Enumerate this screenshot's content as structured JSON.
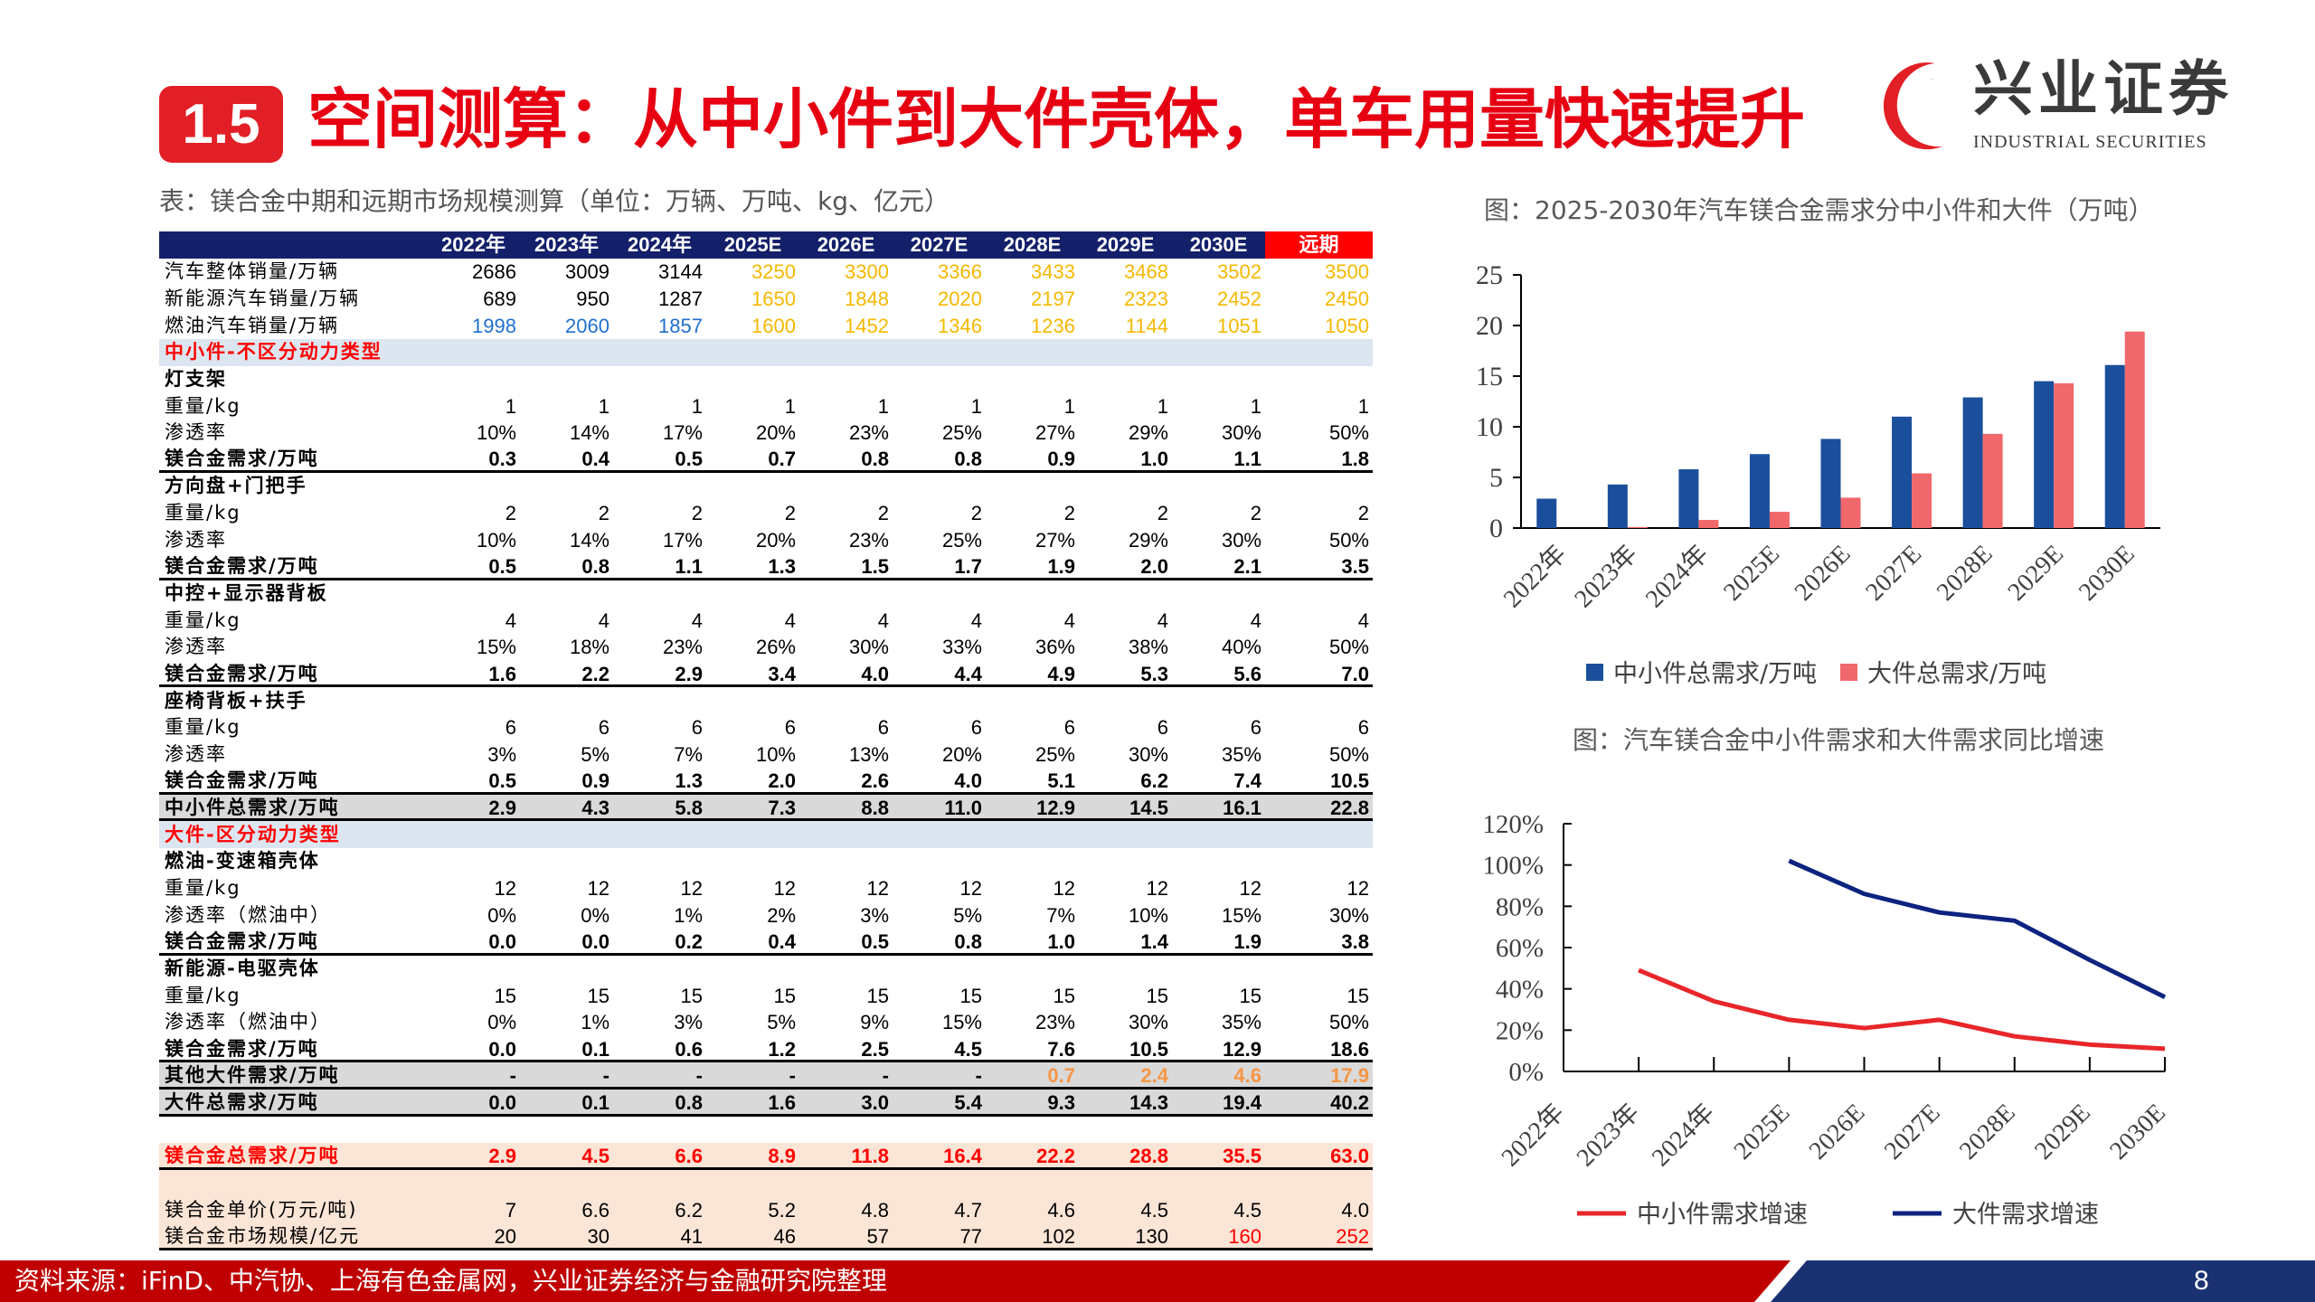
{
  "header": {
    "section_number": "1.5",
    "title": "空间测算：从中小件到大件壳体，单车用量快速提升",
    "logo_name": "兴业证券",
    "logo_en": "INDUSTRIAL SECURITIES"
  },
  "table": {
    "caption": "表：镁合金中期和远期市场规模测算（单位：万辆、万吨、kg、亿元）",
    "columns": [
      "2022年",
      "2023年",
      "2024年",
      "2025E",
      "2026E",
      "2027E",
      "2028E",
      "2029E",
      "2030E",
      "远期"
    ],
    "colors": {
      "yellow": "#f5b800",
      "blue": "#1f6fd0",
      "orange": "#f79646",
      "red": "#ff0000",
      "navy": "#14206a"
    },
    "rows": [
      {
        "type": "data",
        "label": "汽车整体销量/万辆",
        "values": [
          "2686",
          "3009",
          "3144",
          "3250",
          "3300",
          "3366",
          "3433",
          "3468",
          "3502",
          "3500"
        ],
        "hl": [
          "",
          "",
          "",
          "yellow",
          "yellow",
          "yellow",
          "yellow",
          "yellow",
          "yellow",
          "yellow"
        ]
      },
      {
        "type": "data",
        "label": "新能源汽车销量/万辆",
        "values": [
          "689",
          "950",
          "1287",
          "1650",
          "1848",
          "2020",
          "2197",
          "2323",
          "2452",
          "2450"
        ],
        "hl": [
          "",
          "",
          "",
          "yellow",
          "yellow",
          "yellow",
          "yellow",
          "yellow",
          "yellow",
          "yellow"
        ]
      },
      {
        "type": "data",
        "label": "燃油汽车销量/万辆",
        "values": [
          "1998",
          "2060",
          "1857",
          "1600",
          "1452",
          "1346",
          "1236",
          "1144",
          "1051",
          "1050"
        ],
        "hl": [
          "blue",
          "blue",
          "blue",
          "yellow",
          "yellow",
          "yellow",
          "yellow",
          "yellow",
          "yellow",
          "yellow"
        ]
      },
      {
        "type": "section",
        "label": "中小件-不区分动力类型"
      },
      {
        "type": "group",
        "label": "灯支架"
      },
      {
        "type": "data",
        "label": "重量/kg",
        "values": [
          "1",
          "1",
          "1",
          "1",
          "1",
          "1",
          "1",
          "1",
          "1",
          "1"
        ]
      },
      {
        "type": "data",
        "label": "渗透率",
        "values": [
          "10%",
          "14%",
          "17%",
          "20%",
          "23%",
          "25%",
          "27%",
          "29%",
          "30%",
          "50%"
        ]
      },
      {
        "type": "sum",
        "label": "镁合金需求/万吨",
        "values": [
          "0.3",
          "0.4",
          "0.5",
          "0.7",
          "0.8",
          "0.8",
          "0.9",
          "1.0",
          "1.1",
          "1.8"
        ]
      },
      {
        "type": "group",
        "label": "方向盘+门把手"
      },
      {
        "type": "data",
        "label": "重量/kg",
        "values": [
          "2",
          "2",
          "2",
          "2",
          "2",
          "2",
          "2",
          "2",
          "2",
          "2"
        ]
      },
      {
        "type": "data",
        "label": "渗透率",
        "values": [
          "10%",
          "14%",
          "17%",
          "20%",
          "23%",
          "25%",
          "27%",
          "29%",
          "30%",
          "50%"
        ]
      },
      {
        "type": "sum",
        "label": "镁合金需求/万吨",
        "values": [
          "0.5",
          "0.8",
          "1.1",
          "1.3",
          "1.5",
          "1.7",
          "1.9",
          "2.0",
          "2.1",
          "3.5"
        ]
      },
      {
        "type": "group",
        "label": "中控+显示器背板"
      },
      {
        "type": "data",
        "label": "重量/kg",
        "values": [
          "4",
          "4",
          "4",
          "4",
          "4",
          "4",
          "4",
          "4",
          "4",
          "4"
        ]
      },
      {
        "type": "data",
        "label": "渗透率",
        "values": [
          "15%",
          "18%",
          "23%",
          "26%",
          "30%",
          "33%",
          "36%",
          "38%",
          "40%",
          "50%"
        ]
      },
      {
        "type": "sum",
        "label": "镁合金需求/万吨",
        "values": [
          "1.6",
          "2.2",
          "2.9",
          "3.4",
          "4.0",
          "4.4",
          "4.9",
          "5.3",
          "5.6",
          "7.0"
        ]
      },
      {
        "type": "group",
        "label": "座椅背板+扶手"
      },
      {
        "type": "data",
        "label": "重量/kg",
        "values": [
          "6",
          "6",
          "6",
          "6",
          "6",
          "6",
          "6",
          "6",
          "6",
          "6"
        ]
      },
      {
        "type": "data",
        "label": "渗透率",
        "values": [
          "3%",
          "5%",
          "7%",
          "10%",
          "13%",
          "20%",
          "25%",
          "30%",
          "35%",
          "50%"
        ]
      },
      {
        "type": "sum",
        "label": "镁合金需求/万吨",
        "values": [
          "0.5",
          "0.9",
          "1.3",
          "2.0",
          "2.6",
          "4.0",
          "5.1",
          "6.2",
          "7.4",
          "10.5"
        ]
      },
      {
        "type": "gray",
        "label": "中小件总需求/万吨",
        "values": [
          "2.9",
          "4.3",
          "5.8",
          "7.3",
          "8.8",
          "11.0",
          "12.9",
          "14.5",
          "16.1",
          "22.8"
        ]
      },
      {
        "type": "section",
        "label": "大件-区分动力类型"
      },
      {
        "type": "group",
        "label": "燃油-变速箱壳体"
      },
      {
        "type": "data",
        "label": "重量/kg",
        "values": [
          "12",
          "12",
          "12",
          "12",
          "12",
          "12",
          "12",
          "12",
          "12",
          "12"
        ]
      },
      {
        "type": "data",
        "label": "渗透率（燃油中）",
        "values": [
          "0%",
          "0%",
          "1%",
          "2%",
          "3%",
          "5%",
          "7%",
          "10%",
          "15%",
          "30%"
        ]
      },
      {
        "type": "sum",
        "label": "镁合金需求/万吨",
        "values": [
          "0.0",
          "0.0",
          "0.2",
          "0.4",
          "0.5",
          "0.8",
          "1.0",
          "1.4",
          "1.9",
          "3.8"
        ]
      },
      {
        "type": "group",
        "label": "新能源-电驱壳体"
      },
      {
        "type": "data",
        "label": "重量/kg",
        "values": [
          "15",
          "15",
          "15",
          "15",
          "15",
          "15",
          "15",
          "15",
          "15",
          "15"
        ]
      },
      {
        "type": "data",
        "label": "渗透率（燃油中）",
        "values": [
          "0%",
          "1%",
          "3%",
          "5%",
          "9%",
          "15%",
          "23%",
          "30%",
          "35%",
          "50%"
        ]
      },
      {
        "type": "sum",
        "label": "镁合金需求/万吨",
        "values": [
          "0.0",
          "0.1",
          "0.6",
          "1.2",
          "2.5",
          "4.5",
          "7.6",
          "10.5",
          "12.9",
          "18.6"
        ]
      },
      {
        "type": "gray",
        "label": "其他大件需求/万吨",
        "values": [
          "-",
          "-",
          "-",
          "-",
          "-",
          "-",
          "0.7",
          "2.4",
          "4.6",
          "17.9"
        ],
        "hl": [
          "",
          "",
          "",
          "",
          "",
          "",
          "orange",
          "orange",
          "orange",
          "orange"
        ]
      },
      {
        "type": "gray",
        "label": "大件总需求/万吨",
        "values": [
          "0.0",
          "0.1",
          "0.8",
          "1.6",
          "3.0",
          "5.4",
          "9.3",
          "14.3",
          "19.4",
          "40.2"
        ]
      },
      {
        "type": "blank",
        "label": ""
      },
      {
        "type": "total",
        "label": "镁合金总需求/万吨",
        "values": [
          "2.9",
          "4.5",
          "6.6",
          "8.9",
          "11.8",
          "16.4",
          "22.2",
          "28.8",
          "35.5",
          "63.0"
        ]
      },
      {
        "type": "peach",
        "label": ""
      },
      {
        "type": "peach",
        "label": "镁合金单价(万元/吨)",
        "values": [
          "7",
          "6.6",
          "6.2",
          "5.2",
          "4.8",
          "4.7",
          "4.6",
          "4.5",
          "4.5",
          "4.0"
        ]
      },
      {
        "type": "peach last",
        "label": "镁合金市场规模/亿元",
        "values": [
          "20",
          "30",
          "41",
          "46",
          "57",
          "77",
          "102",
          "130",
          "160",
          "252"
        ],
        "hl": [
          "",
          "",
          "",
          "",
          "",
          "",
          "",
          "",
          "red",
          "red"
        ]
      }
    ]
  },
  "chart_data": [
    {
      "type": "bar",
      "title": "图：2025-2030年汽车镁合金需求分中小件和大件（万吨）",
      "categories": [
        "2022年",
        "2023年",
        "2024年",
        "2025E",
        "2026E",
        "2027E",
        "2028E",
        "2029E",
        "2030E"
      ],
      "series": [
        {
          "name": "中小件总需求/万吨",
          "color": "#1b4f9c",
          "values": [
            2.9,
            4.3,
            5.8,
            7.3,
            8.8,
            11.0,
            12.9,
            14.5,
            16.1
          ]
        },
        {
          "name": "大件总需求/万吨",
          "color": "#f0686b",
          "values": [
            0.0,
            0.1,
            0.8,
            1.6,
            3.0,
            5.4,
            9.3,
            14.3,
            19.4
          ]
        }
      ],
      "ylim": [
        0,
        25
      ],
      "yticks": [
        "0",
        "5",
        "10",
        "15",
        "20",
        "25"
      ],
      "legend": "bottom",
      "grid": false
    },
    {
      "type": "line",
      "title": "图：汽车镁合金中小件需求和大件需求同比增速",
      "categories": [
        "2022年",
        "2023年",
        "2024年",
        "2025E",
        "2026E",
        "2027E",
        "2028E",
        "2029E",
        "2030E"
      ],
      "series": [
        {
          "name": "中小件需求增速",
          "color": "#e8262a",
          "values": [
            null,
            49,
            34,
            25,
            21,
            25,
            17,
            13,
            11
          ]
        },
        {
          "name": "大件需求增速",
          "color": "#0d2380",
          "values": [
            null,
            null,
            null,
            102,
            86,
            77,
            73,
            54,
            36
          ]
        }
      ],
      "ylim": [
        0,
        120
      ],
      "yticks": [
        "0%",
        "20%",
        "40%",
        "60%",
        "80%",
        "100%",
        "120%"
      ],
      "legend": "bottom",
      "grid": false
    }
  ],
  "footer": {
    "source": "资料来源：iFinD、中汽协、上海有色金属网，兴业证券经济与金融研究院整理",
    "page": "8"
  }
}
